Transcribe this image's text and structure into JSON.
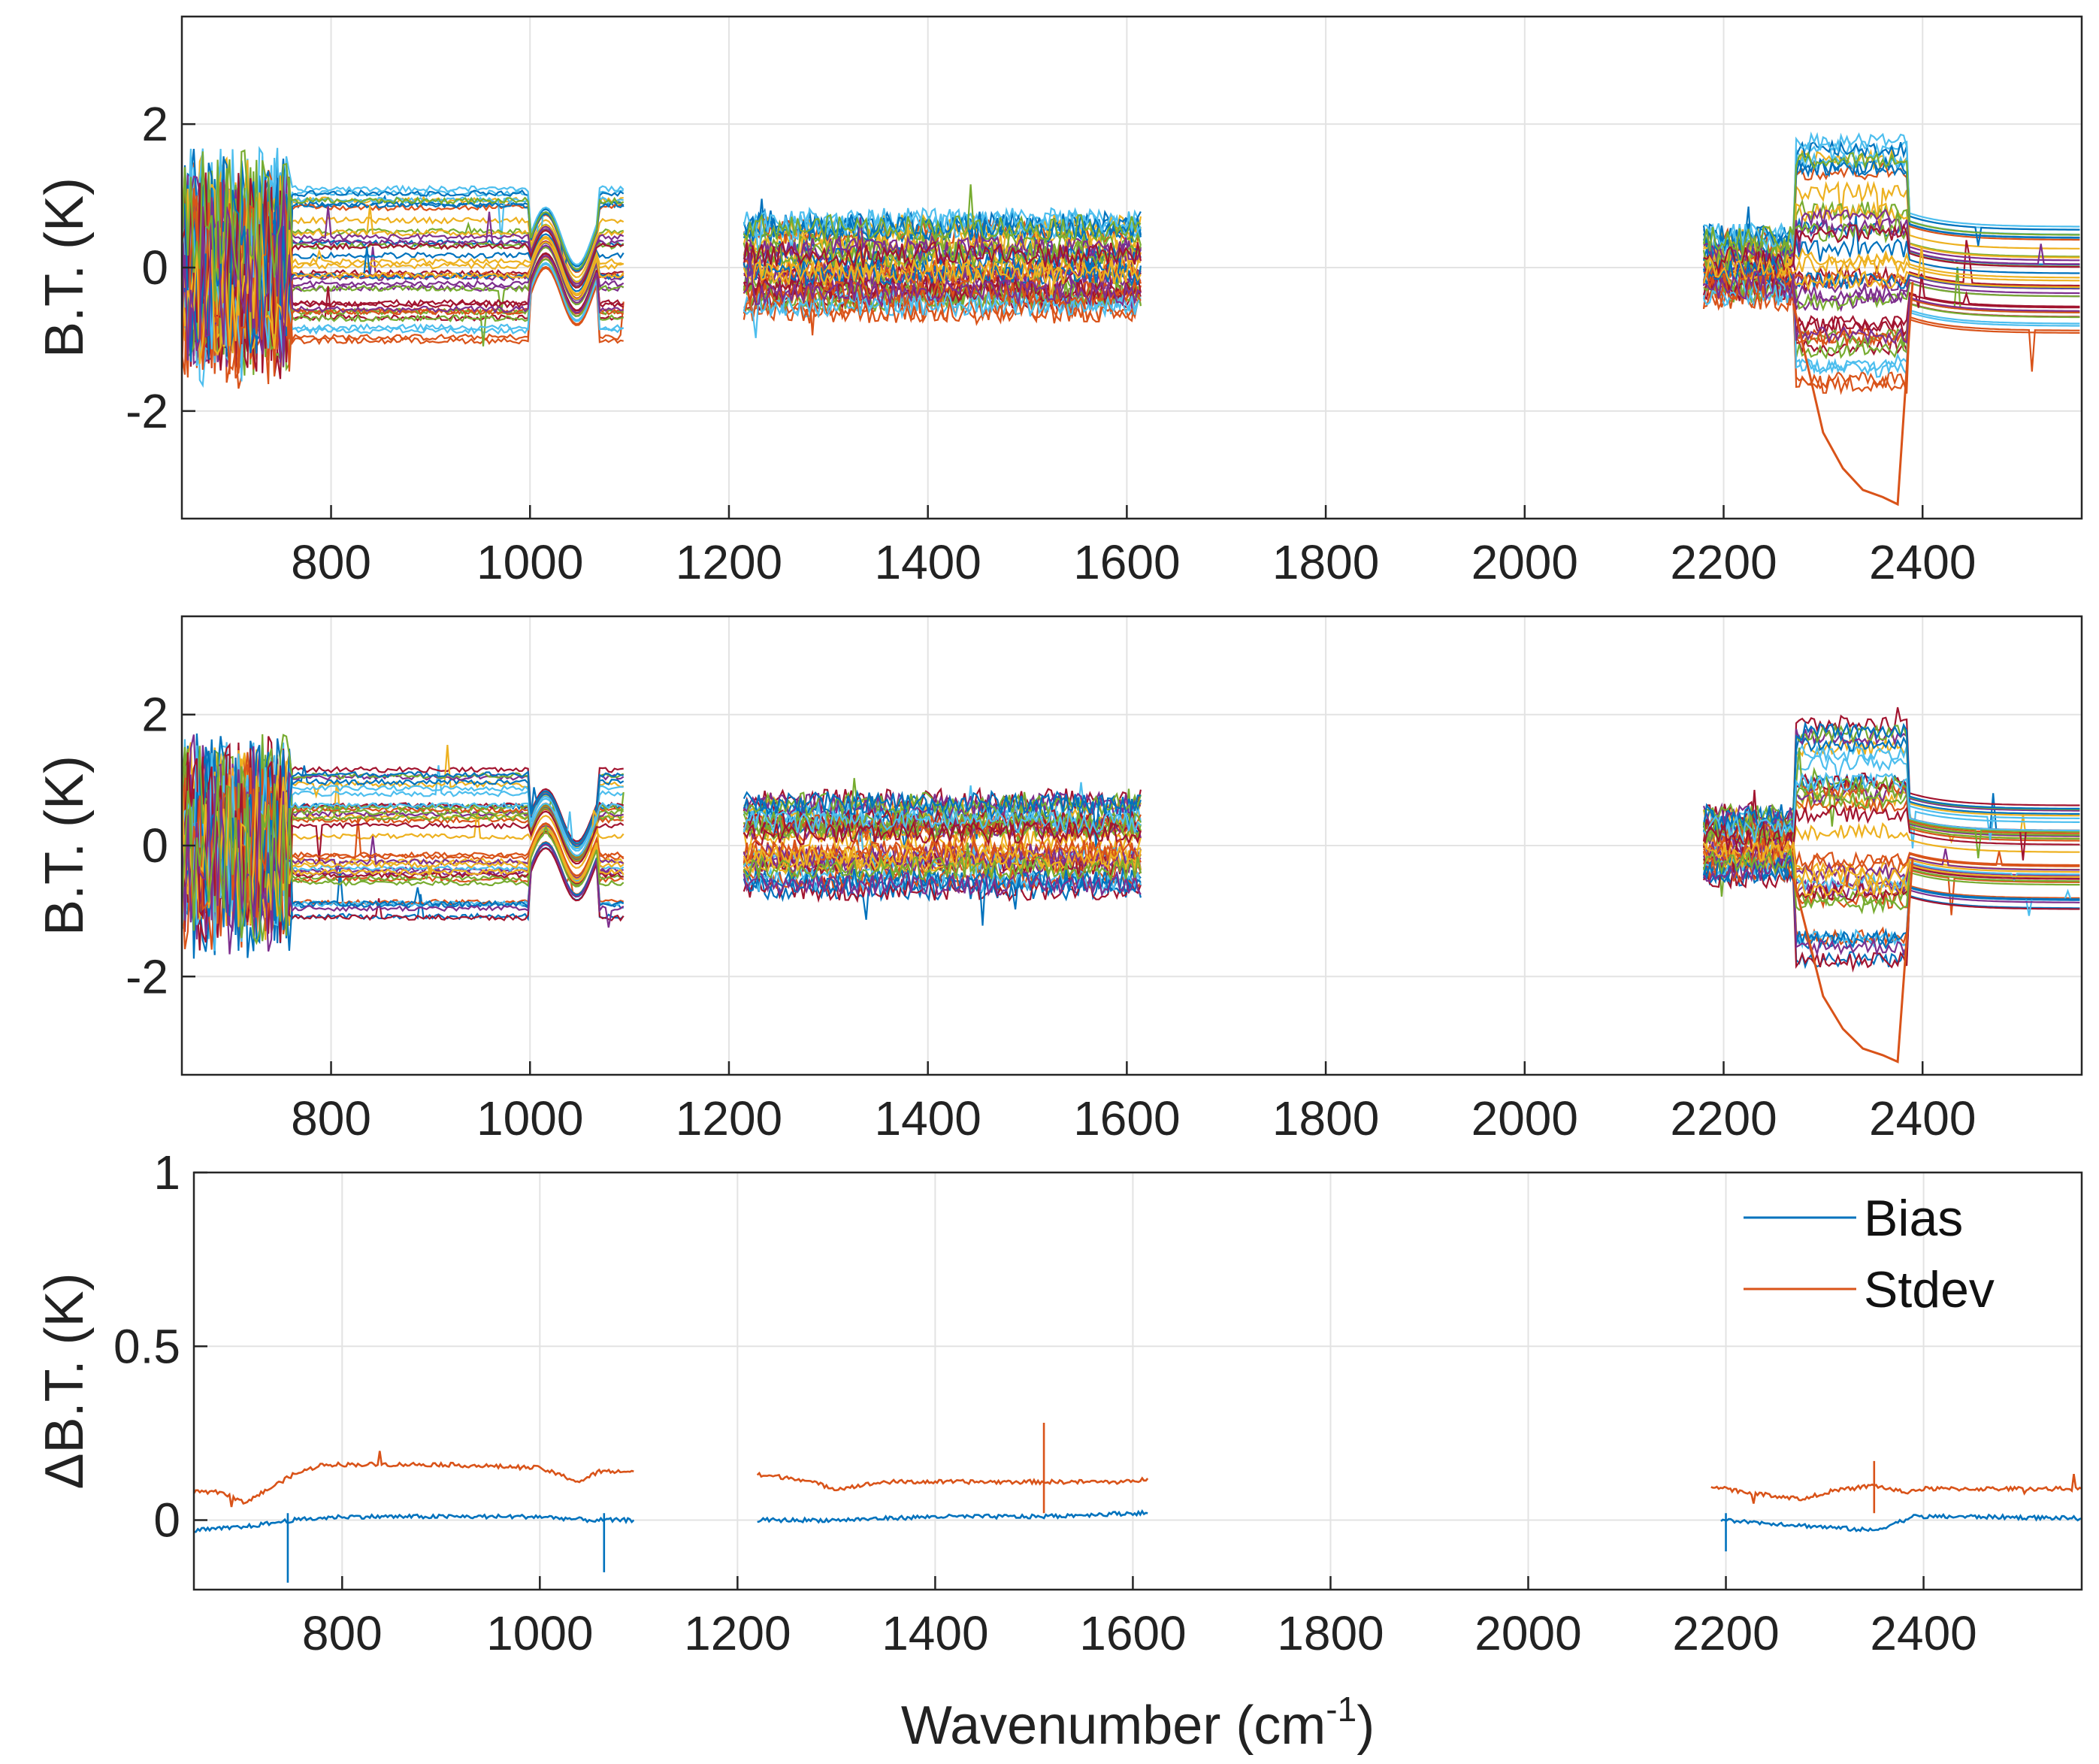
{
  "chart_data": [
    {
      "type": "line",
      "panel": "top",
      "title": "",
      "xlabel": "",
      "ylabel": "B.T. (K)",
      "xlim": [
        650,
        2560
      ],
      "ylim": [
        -3.5,
        3.5
      ],
      "xticks": [
        800,
        1000,
        1200,
        1400,
        1600,
        1800,
        2000,
        2200,
        2400
      ],
      "yticks": [
        -2,
        0,
        2
      ],
      "grid": true,
      "segments": [
        [
          650,
          1095
        ],
        [
          1215,
          1615
        ],
        [
          2180,
          2560
        ]
      ],
      "description_counts": {
        "series": 40
      },
      "special_trace": {
        "name": "orange",
        "x": [
          2270,
          2300,
          2320,
          2340,
          2360,
          2375,
          2390
        ],
        "y": [
          -0.5,
          -2.3,
          -2.8,
          -3.1,
          -3.2,
          -3.3,
          -0.2
        ]
      }
    },
    {
      "type": "line",
      "panel": "middle",
      "title": "",
      "xlabel": "",
      "ylabel": "B.T. (K)",
      "xlim": [
        650,
        2560
      ],
      "ylim": [
        -3.5,
        3.5
      ],
      "xticks": [
        800,
        1000,
        1200,
        1400,
        1600,
        1800,
        2000,
        2200,
        2400
      ],
      "yticks": [
        -2,
        0,
        2
      ],
      "grid": true,
      "segments": [
        [
          650,
          1095
        ],
        [
          1215,
          1615
        ],
        [
          2180,
          2560
        ]
      ],
      "description_counts": {
        "series": 40
      },
      "special_trace": {
        "name": "orange",
        "x": [
          2270,
          2300,
          2320,
          2340,
          2360,
          2375,
          2390
        ],
        "y": [
          -0.5,
          -2.3,
          -2.8,
          -3.1,
          -3.2,
          -3.3,
          -0.2
        ]
      }
    },
    {
      "type": "line",
      "panel": "bottom",
      "title": "",
      "xlabel": "Wavenumber (cm",
      "xlabel_sup": "-1",
      "xlabel_tail": ")",
      "ylabel": "ΔB.T. (K)",
      "xlim": [
        650,
        2560
      ],
      "ylim": [
        -0.2,
        1.0
      ],
      "xticks": [
        800,
        1000,
        1200,
        1400,
        1600,
        1800,
        2000,
        2200,
        2400
      ],
      "yticks": [
        0,
        0.5,
        1
      ],
      "grid": true,
      "legend": {
        "position": "top-right",
        "entries": [
          "Bias",
          "Stdev"
        ]
      },
      "series": [
        {
          "name": "Bias",
          "color": "#0072BD",
          "segments": [
            {
              "x": [
                650,
                700,
                750,
                800,
                850,
                900,
                950,
                1000,
                1050,
                1095
              ],
              "y": [
                -0.03,
                -0.02,
                0.0,
                0.01,
                0.01,
                0.01,
                0.01,
                0.01,
                0.0,
                0.0
              ]
            },
            {
              "x": [
                1220,
                1300,
                1400,
                1500,
                1600,
                1615
              ],
              "y": [
                0.0,
                0.0,
                0.01,
                0.01,
                0.02,
                0.02
              ]
            },
            {
              "x": [
                2195,
                2250,
                2300,
                2350,
                2390,
                2450,
                2560
              ],
              "y": [
                0.0,
                -0.01,
                -0.02,
                -0.03,
                0.01,
                0.01,
                0.005
              ]
            }
          ]
        },
        {
          "name": "Stdev",
          "color": "#D95319",
          "segments": [
            {
              "x": [
                650,
                680,
                700,
                720,
                750,
                780,
                800,
                900,
                1000,
                1040,
                1060,
                1095
              ],
              "y": [
                0.08,
                0.08,
                0.05,
                0.08,
                0.13,
                0.16,
                0.16,
                0.16,
                0.15,
                0.11,
                0.14,
                0.14
              ]
            },
            {
              "x": [
                1220,
                1260,
                1300,
                1350,
                1400,
                1500,
                1600,
                1615
              ],
              "y": [
                0.13,
                0.12,
                0.09,
                0.11,
                0.11,
                0.11,
                0.11,
                0.12
              ]
            },
            {
              "x": [
                2185,
                2220,
                2250,
                2280,
                2300,
                2350,
                2380,
                2400,
                2500,
                2560
              ],
              "y": [
                0.1,
                0.08,
                0.07,
                0.06,
                0.08,
                0.1,
                0.08,
                0.09,
                0.09,
                0.09
              ]
            }
          ]
        }
      ]
    }
  ],
  "palette": [
    "#0072BD",
    "#D95319",
    "#EDB120",
    "#7E2F8E",
    "#77AC30",
    "#4DBEEE",
    "#A2142F"
  ]
}
